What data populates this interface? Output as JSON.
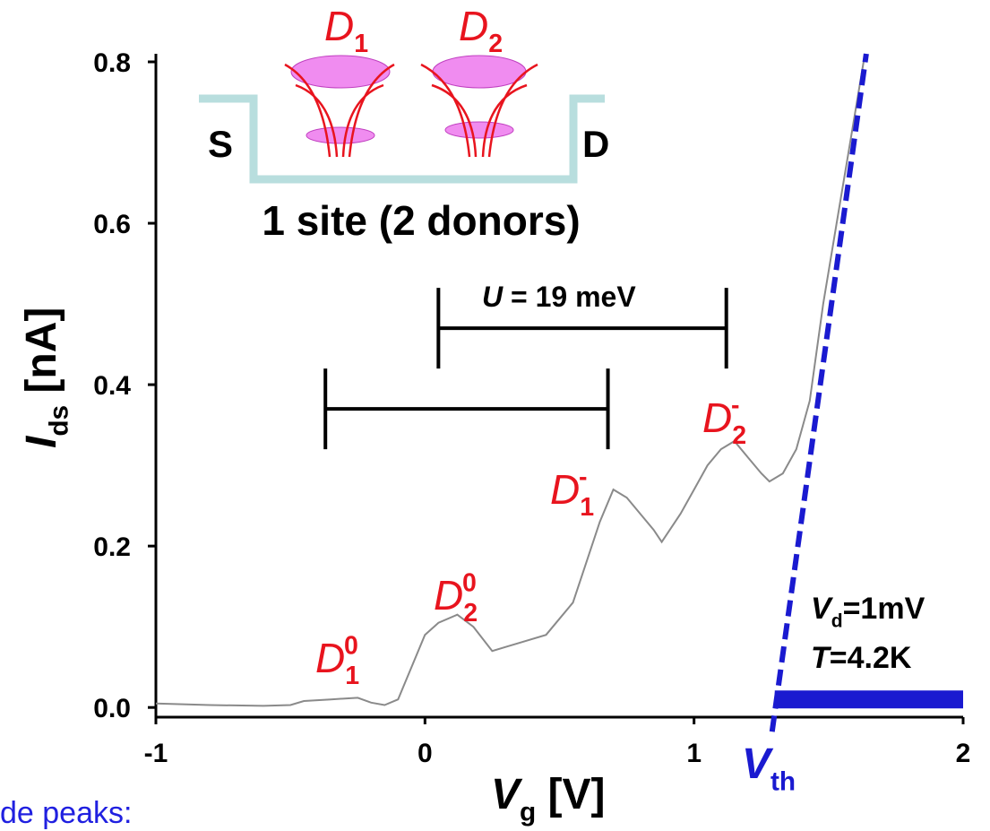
{
  "chart_data": {
    "type": "line",
    "xlabel": {
      "main": "V",
      "sub": "g",
      "rest": " [V]"
    },
    "ylabel": {
      "main": "I",
      "sub": "ds",
      "rest": " [nA]"
    },
    "xlim": [
      -1,
      2
    ],
    "xticks": [
      -1,
      0,
      1,
      2
    ],
    "ylim": [
      -0.012,
      0.81
    ],
    "yticks": [
      {
        "value": 0,
        "label": "0.0"
      },
      0.2,
      0.4,
      0.6,
      0.8
    ],
    "series": [
      {
        "color": "#8a8a8a",
        "x": [
          -1,
          -0.8,
          -0.6,
          -0.5,
          -0.45,
          -0.35,
          -0.25,
          -0.2,
          -0.15,
          -0.1,
          -0.05,
          0.0,
          0.05,
          0.12,
          0.18,
          0.25,
          0.3,
          0.35,
          0.45,
          0.5,
          0.55,
          0.6,
          0.65,
          0.7,
          0.75,
          0.8,
          0.85,
          0.88,
          0.95,
          1.0,
          1.05,
          1.1,
          1.15,
          1.2,
          1.25,
          1.28,
          1.33,
          1.38,
          1.43,
          1.48,
          1.53,
          1.58,
          1.63
        ],
        "values": [
          0.005,
          0.003,
          0.002,
          0.003,
          0.008,
          0.01,
          0.012,
          0.006,
          0.003,
          0.01,
          0.05,
          0.09,
          0.105,
          0.115,
          0.1,
          0.07,
          0.075,
          0.08,
          0.09,
          0.11,
          0.13,
          0.18,
          0.23,
          0.27,
          0.26,
          0.24,
          0.22,
          0.205,
          0.24,
          0.27,
          0.3,
          0.32,
          0.33,
          0.31,
          0.29,
          0.28,
          0.29,
          0.32,
          0.38,
          0.5,
          0.6,
          0.7,
          0.8
        ]
      }
    ],
    "peaks": [
      {
        "main": "D",
        "sub": "1",
        "sup": "0"
      },
      {
        "main": "D",
        "sub": "2",
        "sup": "0"
      },
      {
        "main": "D",
        "sub": "1",
        "sup": "-"
      },
      {
        "main": "D",
        "sub": "2",
        "sup": "-"
      }
    ],
    "brackets": [
      {
        "x": [
          -0.37,
          0.68
        ],
        "y": 0.37
      },
      {
        "x": [
          0.05,
          1.12
        ],
        "y": 0.47
      }
    ],
    "bracket_label": {
      "main": "U",
      "rest": " = 19 meV"
    },
    "threshold": {
      "label": {
        "main": "V",
        "sub": "th"
      },
      "color": "#1a1ad0",
      "x": [
        1.29,
        1.64
      ],
      "y": [
        -0.03,
        0.81
      ],
      "bar_x": [
        1.3,
        2
      ],
      "bar_y": 0.01
    },
    "conditions": [
      {
        "main": "V",
        "sub": "d",
        "rest": "=1mV"
      },
      {
        "main": "T",
        "rest": "=4.2K"
      }
    ],
    "inset": {
      "source": "S",
      "drain": "D",
      "donors": [
        {
          "main": "D",
          "sub": "1"
        },
        {
          "main": "D",
          "sub": "2"
        }
      ],
      "caption": "1 site (2 donors)"
    },
    "footer": "de peaks:"
  }
}
